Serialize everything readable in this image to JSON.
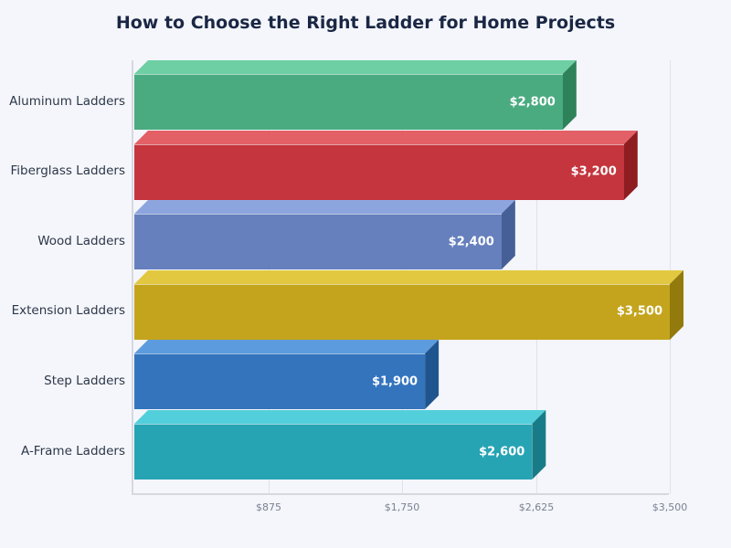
{
  "title": "How to Choose the Right Ladder for Home Projects",
  "x_axis": {
    "ticks": [
      {
        "value": 875,
        "label": "$875"
      },
      {
        "value": 1750,
        "label": "$1,750"
      },
      {
        "value": 2625,
        "label": "$2,625"
      },
      {
        "value": 3500,
        "label": "$3,500"
      }
    ]
  },
  "bars": [
    {
      "label": "Aluminum Ladders",
      "value": 2800,
      "value_label": "$2,800",
      "front": "#4aab80",
      "top": "#6dcfa3",
      "side": "#2e8259"
    },
    {
      "label": "Fiberglass Ladders",
      "value": 3200,
      "value_label": "$3,200",
      "front": "#c4353d",
      "top": "#e26066",
      "side": "#8e1d22"
    },
    {
      "label": "Wood Ladders",
      "value": 2400,
      "value_label": "$2,400",
      "front": "#6680bd",
      "top": "#8da5de",
      "side": "#475f97"
    },
    {
      "label": "Extension Ladders",
      "value": 3500,
      "value_label": "$3,500",
      "front": "#c4a41d",
      "top": "#e2c840",
      "side": "#927a0c"
    },
    {
      "label": "Step Ladders",
      "value": 1900,
      "value_label": "$1,900",
      "front": "#3374bd",
      "top": "#5c9bdd",
      "side": "#1f548f"
    },
    {
      "label": "A-Frame Ladders",
      "value": 2600,
      "value_label": "$2,600",
      "front": "#27a4b4",
      "top": "#52cfdb",
      "side": "#177c88"
    }
  ],
  "chart_data": {
    "type": "bar",
    "orientation": "horizontal",
    "title": "How to Choose the Right Ladder for Home Projects",
    "categories": [
      "Aluminum Ladders",
      "Fiberglass Ladders",
      "Wood Ladders",
      "Extension Ladders",
      "Step Ladders",
      "A-Frame Ladders"
    ],
    "values": [
      2800,
      3200,
      2400,
      3500,
      1900,
      2600
    ],
    "data_labels": [
      "$2,800",
      "$3,200",
      "$2,400",
      "$3,500",
      "$1,900",
      "$2,600"
    ],
    "xlabel": "",
    "ylabel": "",
    "xlim": [
      0,
      3500
    ],
    "x_ticks": [
      "$875",
      "$1,750",
      "$2,625",
      "$3,500"
    ],
    "grid": {
      "vertical": true,
      "horizontal": false
    },
    "legend": null,
    "style": "3d"
  }
}
